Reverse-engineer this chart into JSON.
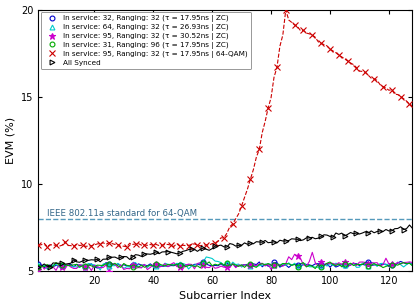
{
  "title": "",
  "xlabel": "Subcarrier Index",
  "ylabel": "EVM (%)",
  "xlim": [
    1,
    128
  ],
  "ylim": [
    5,
    20
  ],
  "yticks": [
    5,
    10,
    15,
    20
  ],
  "xticks": [
    20,
    40,
    60,
    80,
    100,
    120
  ],
  "ieee_line_y": 8.0,
  "ieee_line_label": "IEEE 802.11a standard for 64-QAM",
  "ieee_line_color": "#5599bb",
  "series": [
    {
      "label": "In service: 32, Ranging: 32 (τ = 17.95ns | ZC)",
      "color": "#0000cc",
      "linestyle": "-",
      "marker": "o",
      "markerfacecolor": "none",
      "linewidth": 0.8,
      "markersize": 3.5,
      "marker_every": 8
    },
    {
      "label": "In service: 64, Ranging: 32 (τ = 26.93ns | ZC)",
      "color": "#00cccc",
      "linestyle": "-",
      "marker": "^",
      "markerfacecolor": "none",
      "linewidth": 0.8,
      "markersize": 3.5,
      "marker_every": 8
    },
    {
      "label": "In service: 95, Ranging: 32 (τ = 30.52ns | ZC)",
      "color": "#cc00cc",
      "linestyle": "-",
      "marker": "*",
      "markerfacecolor": "#cc00cc",
      "linewidth": 0.8,
      "markersize": 4.5,
      "marker_every": 8
    },
    {
      "label": "In service: 31, Ranging: 96 (τ = 17.95ns | ZC)",
      "color": "#00aa00",
      "linestyle": "-",
      "marker": "o",
      "markerfacecolor": "none",
      "linewidth": 0.8,
      "markersize": 3.5,
      "marker_every": 8
    },
    {
      "label": "In service: 95, Ranging: 32 (τ = 17.95ns | 64-QAM)",
      "color": "#cc0000",
      "linestyle": "--",
      "marker": "x",
      "markerfacecolor": "#cc0000",
      "linewidth": 0.8,
      "markersize": 4.5,
      "marker_every": 3
    },
    {
      "label": "All Synced",
      "color": "#000000",
      "linestyle": "-",
      "marker": ">",
      "markerfacecolor": "none",
      "linewidth": 0.8,
      "markersize": 3.5,
      "marker_every": 4
    }
  ],
  "background_color": "#ffffff"
}
